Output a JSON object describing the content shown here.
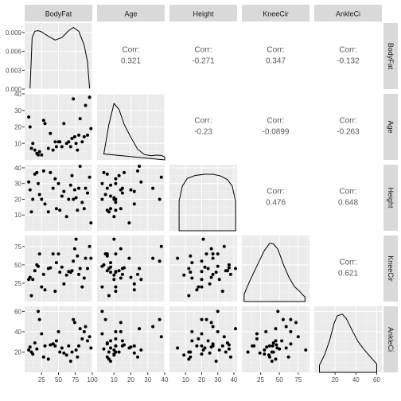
{
  "chart_data": {
    "type": "scatter-matrix",
    "variables": [
      "BodyFat",
      "Age",
      "Height",
      "KneeCir",
      "AnkleCi"
    ],
    "colors": {
      "panel_bg": "#ebebeb",
      "grid_major": "#ffffff",
      "grid_minor": "#f5f5f5",
      "strip_bg": "#d9d9d9",
      "ink": "#000000",
      "corr_text": "#595959",
      "tick_text": "#4d4d4d"
    },
    "axes": [
      {
        "name": "BodyFat",
        "lim": [
          0,
          100
        ],
        "ticks": [
          25,
          50,
          75,
          100
        ],
        "tick_labels": [
          "25",
          "50",
          "75",
          "100"
        ]
      },
      {
        "name": "Age",
        "lim": [
          0,
          40
        ],
        "ticks": [
          10,
          20,
          30,
          40
        ],
        "tick_labels": [
          "10",
          "20",
          "30",
          "40"
        ]
      },
      {
        "name": "Height",
        "lim": [
          0,
          42
        ],
        "ticks": [
          10,
          20,
          30,
          40
        ],
        "tick_labels": [
          "10",
          "20",
          "30",
          "40"
        ]
      },
      {
        "name": "KneeCir",
        "lim": [
          0,
          90
        ],
        "ticks": [
          25,
          50,
          75
        ],
        "tick_labels": [
          "25",
          "50",
          "75"
        ]
      },
      {
        "name": "AnkleCi",
        "lim": [
          0,
          65
        ],
        "ticks": [
          20,
          40,
          60
        ],
        "tick_labels": [
          "20",
          "40",
          "60"
        ]
      }
    ],
    "density_axis": {
      "lim": [
        0,
        0.0105
      ],
      "ticks": [
        0,
        0.003,
        0.006,
        0.009
      ],
      "tick_labels": [
        "0.000",
        "0.003",
        "0.006",
        "0.009"
      ]
    },
    "density_curves": {
      "BodyFat": [
        [
          8,
          0.0001
        ],
        [
          11,
          0.0082
        ],
        [
          15,
          0.0092
        ],
        [
          20,
          0.0093
        ],
        [
          25,
          0.0091
        ],
        [
          35,
          0.0084
        ],
        [
          45,
          0.0078
        ],
        [
          55,
          0.0082
        ],
        [
          65,
          0.0093
        ],
        [
          72,
          0.0098
        ],
        [
          80,
          0.0092
        ],
        [
          88,
          0.007
        ],
        [
          93,
          0.0043
        ],
        [
          96,
          0.0001
        ]
      ],
      "Age": [
        [
          4,
          0.1
        ],
        [
          7,
          0.6
        ],
        [
          10,
          0.95
        ],
        [
          13,
          0.85
        ],
        [
          16,
          0.6
        ],
        [
          20,
          0.38
        ],
        [
          24,
          0.18
        ],
        [
          28,
          0.09
        ],
        [
          32,
          0.07
        ],
        [
          35,
          0.08
        ],
        [
          38,
          0.075
        ],
        [
          40,
          0.05
        ],
        [
          40,
          0.0
        ]
      ],
      "Height": [
        [
          6,
          0.0
        ],
        [
          6,
          0.5
        ],
        [
          8,
          0.75
        ],
        [
          11,
          0.88
        ],
        [
          16,
          0.93
        ],
        [
          22,
          0.95
        ],
        [
          27,
          0.95
        ],
        [
          32,
          0.92
        ],
        [
          36,
          0.86
        ],
        [
          39,
          0.75
        ],
        [
          41,
          0.5
        ],
        [
          41,
          0.0
        ]
      ],
      "KneeCir": [
        [
          3,
          0.0
        ],
        [
          3,
          0.12
        ],
        [
          10,
          0.33
        ],
        [
          20,
          0.6
        ],
        [
          30,
          0.86
        ],
        [
          37,
          0.98
        ],
        [
          42,
          0.97
        ],
        [
          48,
          0.88
        ],
        [
          56,
          0.6
        ],
        [
          63,
          0.4
        ],
        [
          70,
          0.25
        ],
        [
          77,
          0.17
        ],
        [
          82,
          0.1
        ],
        [
          84,
          0.08
        ],
        [
          84,
          0.0
        ]
      ],
      "AnkleCi": [
        [
          5,
          0.0
        ],
        [
          5,
          0.12
        ],
        [
          10,
          0.3
        ],
        [
          15,
          0.55
        ],
        [
          19,
          0.82
        ],
        [
          22,
          0.95
        ],
        [
          27,
          0.98
        ],
        [
          31,
          0.9
        ],
        [
          36,
          0.72
        ],
        [
          42,
          0.52
        ],
        [
          48,
          0.38
        ],
        [
          55,
          0.24
        ],
        [
          60,
          0.14
        ],
        [
          60,
          0.0
        ]
      ]
    },
    "correlations": [
      {
        "pair": [
          "BodyFat",
          "Age"
        ],
        "label": "Corr:",
        "value": "0.321"
      },
      {
        "pair": [
          "BodyFat",
          "Height"
        ],
        "label": "Corr:",
        "value": "-0.271"
      },
      {
        "pair": [
          "BodyFat",
          "KneeCir"
        ],
        "label": "Corr:",
        "value": "0.347"
      },
      {
        "pair": [
          "BodyFat",
          "AnkleCi"
        ],
        "label": "Corr:",
        "value": "-0.132"
      },
      {
        "pair": [
          "Age",
          "Height"
        ],
        "label": "Corr:",
        "value": "-0.23"
      },
      {
        "pair": [
          "Age",
          "KneeCir"
        ],
        "label": "Corr:",
        "value": "-0.0899"
      },
      {
        "pair": [
          "Age",
          "AnkleCi"
        ],
        "label": "Corr:",
        "value": "-0.263"
      },
      {
        "pair": [
          "Height",
          "KneeCir"
        ],
        "label": "Corr:",
        "value": "0.476"
      },
      {
        "pair": [
          "Height",
          "AnkleCi"
        ],
        "label": "Corr:",
        "value": "0.648"
      },
      {
        "pair": [
          "KneeCir",
          "AnkleCi"
        ],
        "label": "Corr:",
        "value": "0.621"
      }
    ],
    "observations": [
      {
        "BodyFat": 6,
        "Age": 26,
        "Height": 31,
        "KneeCir": 30,
        "AnkleCi": 22
      },
      {
        "BodyFat": 8,
        "Age": 20,
        "Height": 26,
        "KneeCir": 33,
        "AnkleCi": 25
      },
      {
        "BodyFat": 10,
        "Age": 7,
        "Height": 12,
        "KneeCir": 8,
        "AnkleCi": 20
      },
      {
        "BodyFat": 15,
        "Age": 6,
        "Height": 36,
        "KneeCir": 42,
        "AnkleCi": 29
      },
      {
        "BodyFat": 18,
        "Age": 4,
        "Height": 37,
        "KneeCir": 50,
        "AnkleCi": 23
      },
      {
        "BodyFat": 20,
        "Age": 3,
        "Height": 30,
        "KneeCir": 48,
        "AnkleCi": 60
      },
      {
        "BodyFat": 22,
        "Age": 5,
        "Height": 23,
        "KneeCir": 65,
        "AnkleCi": 52
      },
      {
        "BodyFat": 25,
        "Age": 3,
        "Height": 20,
        "KneeCir": 20,
        "AnkleCi": 38
      },
      {
        "BodyFat": 28,
        "Age": 24,
        "Height": 38,
        "KneeCir": 37,
        "AnkleCi": 15
      },
      {
        "BodyFat": 30,
        "Age": 22,
        "Height": 17,
        "KneeCir": 16,
        "AnkleCi": 26
      },
      {
        "BodyFat": 35,
        "Age": 7,
        "Height": 12,
        "KneeCir": 45,
        "AnkleCi": 13
      },
      {
        "BodyFat": 42,
        "Age": 6,
        "Height": 27,
        "KneeCir": 65,
        "AnkleCi": 28
      },
      {
        "BodyFat": 45,
        "Age": 11,
        "Height": 33,
        "KneeCir": 14,
        "AnkleCi": 26
      },
      {
        "BodyFat": 47,
        "Age": 8,
        "Height": 14,
        "KneeCir": 53,
        "AnkleCi": 31
      },
      {
        "BodyFat": 50,
        "Age": 11,
        "Height": 30,
        "KneeCir": 65,
        "AnkleCi": 40
      },
      {
        "BodyFat": 52,
        "Age": 11,
        "Height": 13,
        "KneeCir": 40,
        "AnkleCi": 20
      },
      {
        "BodyFat": 55,
        "Age": 8,
        "Height": 22,
        "KneeCir": 47,
        "AnkleCi": 24
      },
      {
        "BodyFat": 62,
        "Age": 10,
        "Height": 9,
        "KneeCir": 36,
        "AnkleCi": 17
      },
      {
        "BodyFat": 65,
        "Age": 11,
        "Height": 20,
        "KneeCir": 41,
        "AnkleCi": 26
      },
      {
        "BodyFat": 68,
        "Age": 8,
        "Height": 29,
        "KneeCir": 40,
        "AnkleCi": 11
      },
      {
        "BodyFat": 70,
        "Age": 13,
        "Height": 35,
        "KneeCir": 42,
        "AnkleCi": 20
      },
      {
        "BodyFat": 72,
        "Age": 37,
        "Height": 20,
        "KneeCir": 55,
        "AnkleCi": 52
      },
      {
        "BodyFat": 74,
        "Age": 14,
        "Height": 26,
        "KneeCir": 72,
        "AnkleCi": 49
      },
      {
        "BodyFat": 76,
        "Age": 10,
        "Height": 21,
        "KneeCir": 85,
        "AnkleCi": 22
      },
      {
        "BodyFat": 78,
        "Age": 6,
        "Height": 13,
        "KneeCir": 62,
        "AnkleCi": 15
      },
      {
        "BodyFat": 80,
        "Age": 15,
        "Height": 27,
        "KneeCir": 37,
        "AnkleCi": 26
      },
      {
        "BodyFat": 82,
        "Age": 25,
        "Height": 41,
        "KneeCir": 45,
        "AnkleCi": 43
      },
      {
        "BodyFat": 85,
        "Age": 11,
        "Height": 18,
        "KneeCir": 20,
        "AnkleCi": 33
      },
      {
        "BodyFat": 88,
        "Age": 14,
        "Height": 14,
        "KneeCir": 32,
        "AnkleCi": 40
      },
      {
        "BodyFat": 90,
        "Age": 33,
        "Height": 27,
        "KneeCir": 59,
        "AnkleCi": 45
      },
      {
        "BodyFat": 93,
        "Age": 15,
        "Height": 24,
        "KneeCir": 45,
        "AnkleCi": 31
      },
      {
        "BodyFat": 96,
        "Age": 38,
        "Height": 34,
        "KneeCir": 75,
        "AnkleCi": 35
      },
      {
        "BodyFat": 98,
        "Age": 19,
        "Height": 5,
        "KneeCir": 59,
        "AnkleCi": 24
      },
      {
        "BodyFat": 12,
        "Age": 10,
        "Height": 20,
        "KneeCir": 30,
        "AnkleCi": 18
      },
      {
        "BodyFat": 38,
        "Age": 16,
        "Height": 37,
        "KneeCir": 46,
        "AnkleCi": 27
      },
      {
        "BodyFat": 58,
        "Age": 22,
        "Height": 25,
        "KneeCir": 24,
        "AnkleCi": 19
      }
    ]
  }
}
